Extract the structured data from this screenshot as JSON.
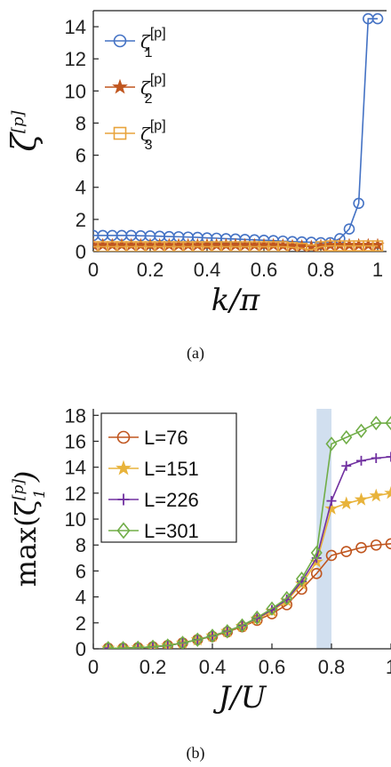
{
  "chart_data": [
    {
      "type": "line",
      "panel_caption": "(a)",
      "xlabel": "k/π",
      "ylabel": "ζ",
      "ylabel_sup": "[p]",
      "xlim": [
        0,
        1
      ],
      "ylim": [
        0,
        15
      ],
      "xticks": [
        0,
        0.2,
        0.4,
        0.6,
        0.8,
        1
      ],
      "xtick_labels": [
        "0",
        "0.2",
        "0.4",
        "0.6",
        "0.8",
        "1"
      ],
      "yticks": [
        0,
        2,
        4,
        6,
        8,
        10,
        12,
        14
      ],
      "ytick_labels": [
        "0",
        "2",
        "4",
        "6",
        "8",
        "10",
        "12",
        "14"
      ],
      "legend_position": "top-left",
      "x": [
        0,
        0.0333,
        0.0667,
        0.1,
        0.1333,
        0.1667,
        0.2,
        0.2333,
        0.2667,
        0.3,
        0.3333,
        0.3667,
        0.4,
        0.4333,
        0.4667,
        0.5,
        0.5333,
        0.5667,
        0.6,
        0.6333,
        0.6667,
        0.7,
        0.7333,
        0.7667,
        0.8,
        0.8333,
        0.8667,
        0.9,
        0.9333,
        0.9667,
        1
      ],
      "series": [
        {
          "name": "ζ",
          "name_sup": "[p]",
          "name_sub": "1",
          "marker": "circle",
          "color": "#4472c4",
          "values": [
            1.0,
            1.0,
            1.0,
            1.0,
            1.0,
            0.98,
            0.97,
            0.95,
            0.93,
            0.92,
            0.9,
            0.88,
            0.85,
            0.83,
            0.8,
            0.78,
            0.75,
            0.73,
            0.7,
            0.68,
            0.65,
            0.62,
            0.6,
            0.58,
            0.55,
            0.55,
            0.8,
            1.4,
            3.0,
            14.5,
            14.5
          ]
        },
        {
          "name": "ζ",
          "name_sup": "[p]",
          "name_sub": "2",
          "marker": "star",
          "color": "#c0561f",
          "values": [
            0.4,
            0.4,
            0.4,
            0.4,
            0.4,
            0.4,
            0.4,
            0.4,
            0.4,
            0.4,
            0.4,
            0.4,
            0.4,
            0.4,
            0.4,
            0.4,
            0.4,
            0.4,
            0.4,
            0.4,
            0.38,
            0.35,
            0.33,
            0.3,
            0.35,
            0.4,
            0.4,
            0.4,
            0.4,
            0.4,
            0.4
          ]
        },
        {
          "name": "ζ",
          "name_sup": "[p]",
          "name_sub": "3",
          "marker": "square",
          "color": "#e8a33b",
          "values": [
            0.3,
            0.3,
            0.3,
            0.3,
            0.3,
            0.3,
            0.3,
            0.3,
            0.3,
            0.3,
            0.3,
            0.3,
            0.3,
            0.3,
            0.3,
            0.3,
            0.3,
            0.3,
            0.3,
            0.3,
            0.3,
            0.25,
            0.2,
            0.1,
            0.3,
            0.35,
            0.35,
            0.35,
            0.35,
            0.35,
            0.35
          ]
        }
      ]
    },
    {
      "type": "line",
      "panel_caption": "(b)",
      "xlabel": "J/U",
      "ylabel": "max(ζ",
      "ylabel_sup": "[p]",
      "ylabel_sub": "1",
      "ylabel_close": ")",
      "xlim": [
        0,
        1
      ],
      "ylim": [
        0,
        18.5
      ],
      "xticks": [
        0,
        0.2,
        0.4,
        0.6,
        0.8,
        1
      ],
      "xtick_labels": [
        "0",
        "0.2",
        "0.4",
        "0.6",
        "0.8",
        "1"
      ],
      "yticks": [
        0,
        2,
        4,
        6,
        8,
        10,
        12,
        14,
        16,
        18
      ],
      "ytick_labels": [
        "0",
        "2",
        "4",
        "6",
        "8",
        "10",
        "12",
        "14",
        "16",
        "18"
      ],
      "shaded_region_x": [
        0.75,
        0.8
      ],
      "shade_color": "#c9d9ec",
      "legend_position": "top-left",
      "x": [
        0.05,
        0.1,
        0.15,
        0.2,
        0.25,
        0.3,
        0.35,
        0.4,
        0.45,
        0.5,
        0.55,
        0.6,
        0.65,
        0.7,
        0.75,
        0.8,
        0.85,
        0.9,
        0.95,
        1.0
      ],
      "series": [
        {
          "name": "L=76",
          "marker": "circle",
          "color": "#c0561f",
          "values": [
            0.05,
            0.05,
            0.08,
            0.15,
            0.25,
            0.45,
            0.7,
            0.95,
            1.3,
            1.7,
            2.2,
            2.7,
            3.4,
            4.6,
            5.8,
            7.2,
            7.5,
            7.8,
            8.0,
            8.1
          ]
        },
        {
          "name": "L=151",
          "marker": "star",
          "color": "#e8b33b",
          "values": [
            0.05,
            0.05,
            0.08,
            0.15,
            0.25,
            0.45,
            0.7,
            1.0,
            1.35,
            1.75,
            2.3,
            2.9,
            3.7,
            5.0,
            6.7,
            10.8,
            11.2,
            11.5,
            11.8,
            12.0
          ]
        },
        {
          "name": "L=226",
          "marker": "plus",
          "color": "#7030a0",
          "values": [
            0.05,
            0.05,
            0.08,
            0.15,
            0.25,
            0.45,
            0.7,
            1.0,
            1.35,
            1.8,
            2.35,
            3.0,
            3.8,
            5.2,
            7.0,
            11.4,
            14.1,
            14.5,
            14.7,
            14.8
          ]
        },
        {
          "name": "L=301",
          "marker": "diamond",
          "color": "#70ad47",
          "values": [
            0.05,
            0.05,
            0.08,
            0.15,
            0.25,
            0.45,
            0.7,
            1.0,
            1.35,
            1.8,
            2.4,
            3.1,
            3.9,
            5.4,
            7.4,
            15.8,
            16.3,
            16.8,
            17.4,
            17.4
          ]
        }
      ]
    }
  ]
}
